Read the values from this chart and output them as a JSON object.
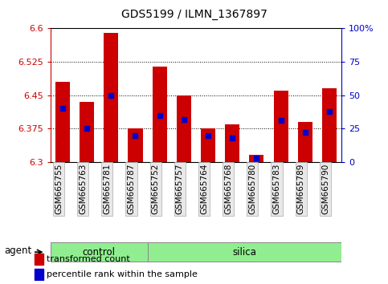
{
  "title": "GDS5199 / ILMN_1367897",
  "samples": [
    "GSM665755",
    "GSM665763",
    "GSM665781",
    "GSM665787",
    "GSM665752",
    "GSM665757",
    "GSM665764",
    "GSM665768",
    "GSM665780",
    "GSM665783",
    "GSM665789",
    "GSM665790"
  ],
  "groups": [
    "control",
    "control",
    "control",
    "control",
    "silica",
    "silica",
    "silica",
    "silica",
    "silica",
    "silica",
    "silica",
    "silica"
  ],
  "transformed_count": [
    6.48,
    6.435,
    6.59,
    6.375,
    6.515,
    6.45,
    6.375,
    6.385,
    6.315,
    6.46,
    6.39,
    6.465
  ],
  "percentile_rank": [
    40,
    25,
    50,
    20,
    35,
    32,
    20,
    18,
    3,
    31,
    22,
    38
  ],
  "ylim_left": [
    6.3,
    6.6
  ],
  "ylim_right": [
    0,
    100
  ],
  "yticks_left": [
    6.3,
    6.375,
    6.45,
    6.525,
    6.6
  ],
  "yticks_right": [
    0,
    25,
    50,
    75,
    100
  ],
  "bar_color": "#cc0000",
  "dot_color": "#0000cc",
  "group_color": "#90ee90",
  "axis_left_color": "#cc0000",
  "axis_right_color": "#0000cc",
  "agent_label": "agent",
  "group_labels": [
    "control",
    "silica"
  ],
  "legend_bar": "transformed count",
  "legend_dot": "percentile rank within the sample",
  "bar_bottom": 6.3,
  "bar_width": 0.6,
  "n_control": 4,
  "n_silica": 8
}
